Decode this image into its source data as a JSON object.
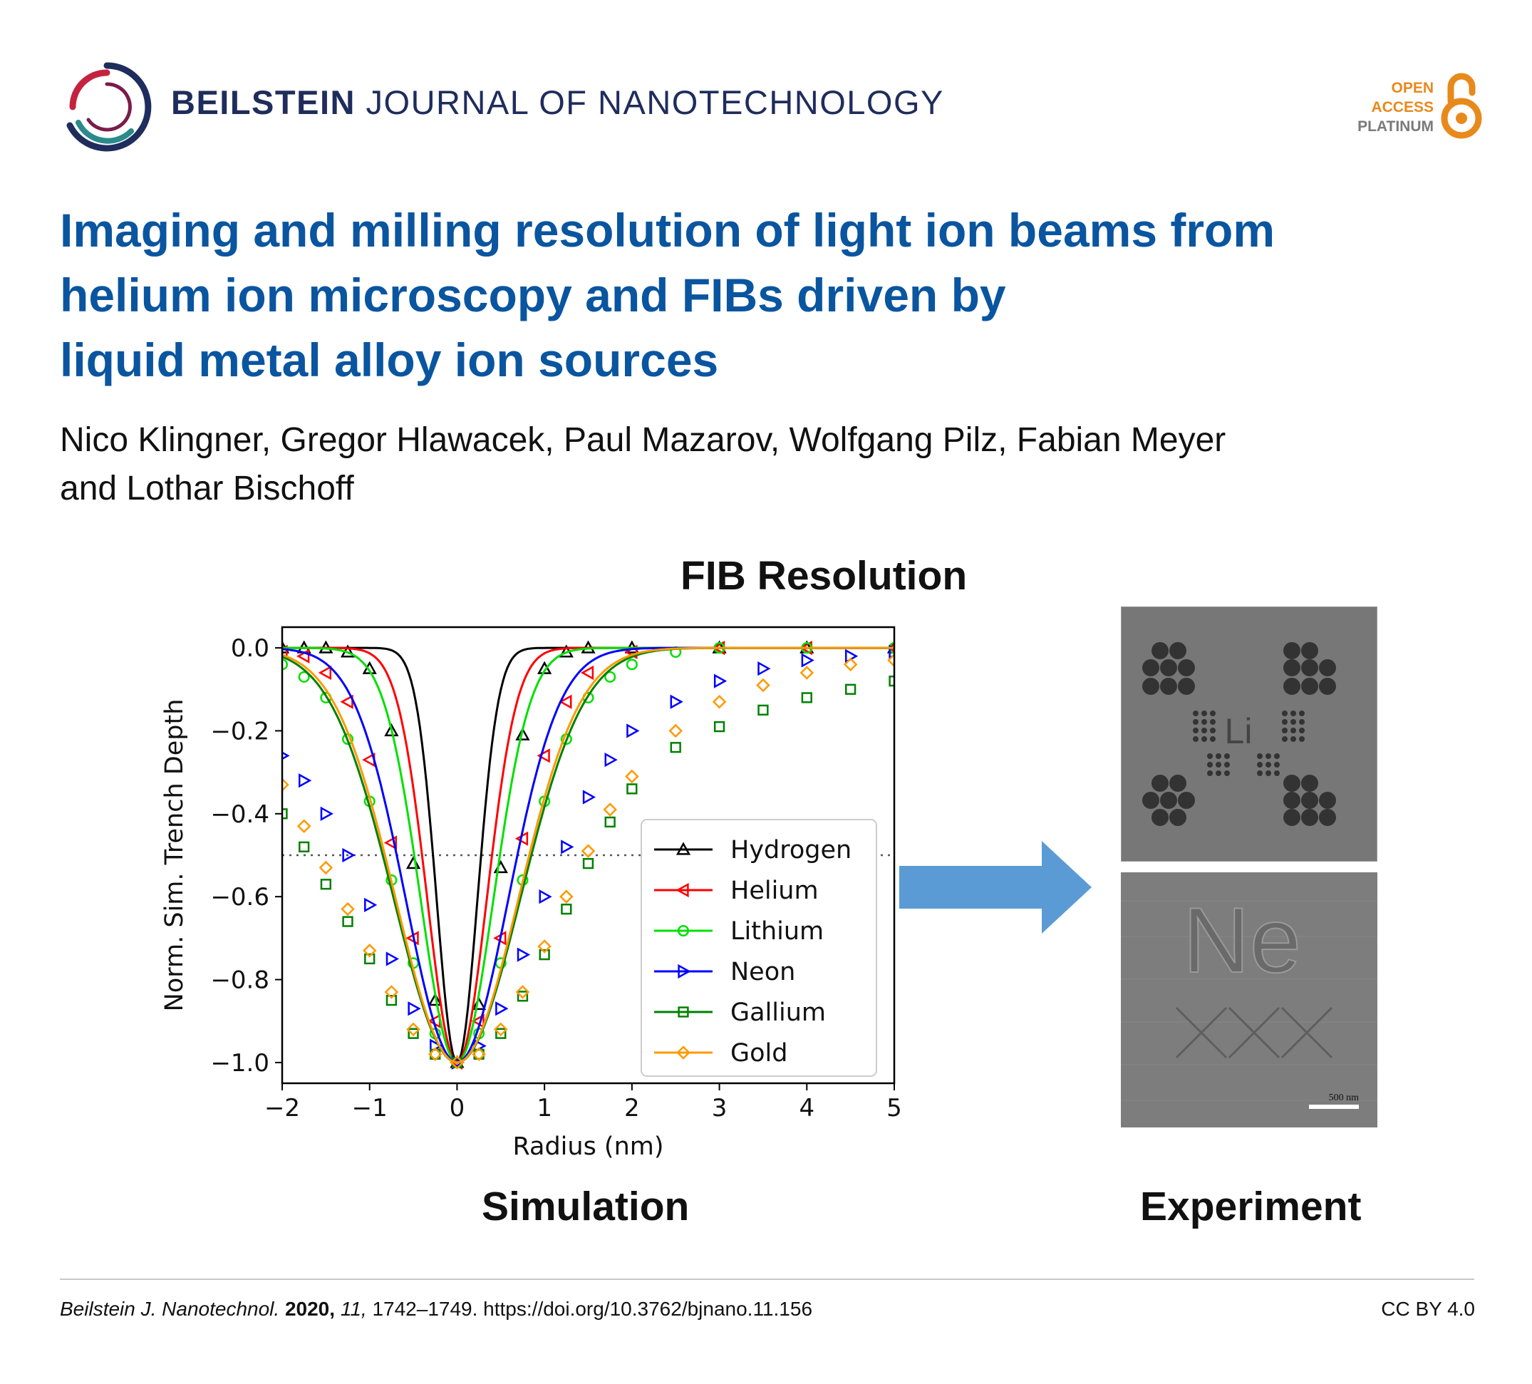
{
  "header": {
    "journal_bold": "BEILSTEIN",
    "journal_rest": " JOURNAL OF NANOTECHNOLOGY",
    "logo_icon": "beilstein-ring-logo-icon",
    "badge": {
      "line1": "OPEN",
      "line2": "ACCESS",
      "line3": "PLATINUM",
      "icon": "open-access-lock-icon"
    }
  },
  "article": {
    "title_line1": "Imaging and milling resolution of light ion beams from",
    "title_line2": "helium ion microscopy and FIBs driven by",
    "title_line3": "liquid metal alloy ion sources",
    "authors_line1": "Nico Klingner, Gregor Hlawacek, Paul Mazarov, Wolfgang Pilz, Fabian Meyer",
    "authors_line2": "and Lothar Bischoff"
  },
  "figure": {
    "heading": "FIB Resolution",
    "left_label": "Simulation",
    "right_label": "Experiment",
    "arrow_color": "#5b9bd5",
    "micrograph_top_text": "Li",
    "micrograph_bottom_text": "Ne",
    "scale_bar_text": "500 nm"
  },
  "chart_data": {
    "type": "line",
    "title": "",
    "xlabel": "Radius (nm)",
    "ylabel": "Norm. Sim. Trench Depth",
    "xlim": [
      -2,
      5
    ],
    "ylim": [
      -1.05,
      0.05
    ],
    "xticks": [
      "−2",
      "−1",
      "0",
      "1",
      "2",
      "3",
      "4",
      "5"
    ],
    "yticks": [
      "0.0",
      "−0.2",
      "−0.4",
      "−0.6",
      "−0.8",
      "−1.0"
    ],
    "reference_line": {
      "y": -0.5,
      "style": "dotted"
    },
    "legend_position": "lower-right",
    "series": [
      {
        "name": "Hydrogen",
        "color": "#000000",
        "marker": "triangle-up",
        "fwhm_nm": 0.55,
        "points": [
          [
            -2.0,
            0.0
          ],
          [
            -1.75,
            0.0
          ],
          [
            -1.5,
            0.0
          ],
          [
            -1.25,
            -0.01
          ],
          [
            -1.0,
            -0.05
          ],
          [
            -0.75,
            -0.2
          ],
          [
            -0.5,
            -0.52
          ],
          [
            -0.25,
            -0.85
          ],
          [
            0.0,
            -1.0
          ],
          [
            0.25,
            -0.86
          ],
          [
            0.5,
            -0.53
          ],
          [
            0.75,
            -0.21
          ],
          [
            1.0,
            -0.05
          ],
          [
            1.25,
            -0.01
          ],
          [
            1.5,
            0.0
          ],
          [
            2.0,
            0.0
          ],
          [
            3.0,
            0.0
          ],
          [
            4.0,
            0.0
          ],
          [
            5.0,
            0.0
          ]
        ]
      },
      {
        "name": "Helium",
        "color": "#ff0000",
        "marker": "triangle-left",
        "fwhm_nm": 0.8,
        "points": [
          [
            -2.0,
            -0.01
          ],
          [
            -1.75,
            -0.02
          ],
          [
            -1.5,
            -0.06
          ],
          [
            -1.25,
            -0.13
          ],
          [
            -1.0,
            -0.27
          ],
          [
            -0.75,
            -0.47
          ],
          [
            -0.5,
            -0.7
          ],
          [
            -0.25,
            -0.9
          ],
          [
            0.0,
            -1.0
          ],
          [
            0.25,
            -0.9
          ],
          [
            0.5,
            -0.7
          ],
          [
            0.75,
            -0.46
          ],
          [
            1.0,
            -0.26
          ],
          [
            1.25,
            -0.13
          ],
          [
            1.5,
            -0.06
          ],
          [
            2.0,
            -0.01
          ],
          [
            3.0,
            0.0
          ],
          [
            4.0,
            0.0
          ],
          [
            5.0,
            0.0
          ]
        ]
      },
      {
        "name": "Lithium",
        "color": "#00e000",
        "marker": "circle",
        "fwhm_nm": 0.98,
        "points": [
          [
            -2.0,
            -0.04
          ],
          [
            -1.75,
            -0.07
          ],
          [
            -1.5,
            -0.12
          ],
          [
            -1.25,
            -0.22
          ],
          [
            -1.0,
            -0.37
          ],
          [
            -0.75,
            -0.56
          ],
          [
            -0.5,
            -0.76
          ],
          [
            -0.25,
            -0.93
          ],
          [
            0.0,
            -1.0
          ],
          [
            0.25,
            -0.93
          ],
          [
            0.5,
            -0.76
          ],
          [
            0.75,
            -0.56
          ],
          [
            1.0,
            -0.37
          ],
          [
            1.25,
            -0.22
          ],
          [
            1.5,
            -0.12
          ],
          [
            1.75,
            -0.07
          ],
          [
            2.0,
            -0.04
          ],
          [
            2.5,
            -0.01
          ],
          [
            3.0,
            0.0
          ],
          [
            4.0,
            0.0
          ],
          [
            5.0,
            0.0
          ]
        ]
      },
      {
        "name": "Neon",
        "color": "#0000ff",
        "marker": "triangle-right",
        "fwhm_nm": 1.38,
        "points": [
          [
            -2.0,
            -0.26
          ],
          [
            -1.75,
            -0.32
          ],
          [
            -1.5,
            -0.4
          ],
          [
            -1.25,
            -0.5
          ],
          [
            -1.0,
            -0.62
          ],
          [
            -0.75,
            -0.75
          ],
          [
            -0.5,
            -0.87
          ],
          [
            -0.25,
            -0.96
          ],
          [
            0.0,
            -1.0
          ],
          [
            0.25,
            -0.96
          ],
          [
            0.5,
            -0.87
          ],
          [
            0.75,
            -0.74
          ],
          [
            1.0,
            -0.6
          ],
          [
            1.25,
            -0.48
          ],
          [
            1.5,
            -0.36
          ],
          [
            1.75,
            -0.27
          ],
          [
            2.0,
            -0.2
          ],
          [
            2.5,
            -0.13
          ],
          [
            3.0,
            -0.08
          ],
          [
            3.5,
            -0.05
          ],
          [
            4.0,
            -0.03
          ],
          [
            4.5,
            -0.02
          ],
          [
            5.0,
            -0.01
          ]
        ]
      },
      {
        "name": "Gallium",
        "color": "#008000",
        "marker": "square",
        "fwhm_nm": 1.7,
        "points": [
          [
            -2.0,
            -0.4
          ],
          [
            -1.75,
            -0.48
          ],
          [
            -1.5,
            -0.57
          ],
          [
            -1.25,
            -0.66
          ],
          [
            -1.0,
            -0.75
          ],
          [
            -0.75,
            -0.85
          ],
          [
            -0.5,
            -0.93
          ],
          [
            -0.25,
            -0.98
          ],
          [
            0.0,
            -1.0
          ],
          [
            0.25,
            -0.98
          ],
          [
            0.5,
            -0.93
          ],
          [
            0.75,
            -0.84
          ],
          [
            1.0,
            -0.74
          ],
          [
            1.25,
            -0.63
          ],
          [
            1.5,
            -0.52
          ],
          [
            1.75,
            -0.42
          ],
          [
            2.0,
            -0.34
          ],
          [
            2.5,
            -0.24
          ],
          [
            3.0,
            -0.19
          ],
          [
            3.5,
            -0.15
          ],
          [
            4.0,
            -0.12
          ],
          [
            4.5,
            -0.1
          ],
          [
            5.0,
            -0.08
          ]
        ]
      },
      {
        "name": "Gold",
        "color": "#ff9900",
        "marker": "diamond",
        "fwhm_nm": 1.65,
        "points": [
          [
            -2.0,
            -0.33
          ],
          [
            -1.75,
            -0.43
          ],
          [
            -1.5,
            -0.53
          ],
          [
            -1.25,
            -0.63
          ],
          [
            -1.0,
            -0.73
          ],
          [
            -0.75,
            -0.83
          ],
          [
            -0.5,
            -0.92
          ],
          [
            -0.25,
            -0.98
          ],
          [
            0.0,
            -1.0
          ],
          [
            0.25,
            -0.98
          ],
          [
            0.5,
            -0.92
          ],
          [
            0.75,
            -0.83
          ],
          [
            1.0,
            -0.72
          ],
          [
            1.25,
            -0.6
          ],
          [
            1.5,
            -0.49
          ],
          [
            1.75,
            -0.39
          ],
          [
            2.0,
            -0.31
          ],
          [
            2.5,
            -0.2
          ],
          [
            3.0,
            -0.13
          ],
          [
            3.5,
            -0.09
          ],
          [
            4.0,
            -0.06
          ],
          [
            4.5,
            -0.04
          ],
          [
            5.0,
            -0.03
          ]
        ]
      }
    ]
  },
  "footer": {
    "journal_abbrev": "Beilstein J. Nanotechnol.",
    "year": "2020,",
    "volume": "11,",
    "pages_doi": "1742–1749. https://doi.org/10.3762/bjnano.11.156",
    "license": "CC BY 4.0"
  }
}
